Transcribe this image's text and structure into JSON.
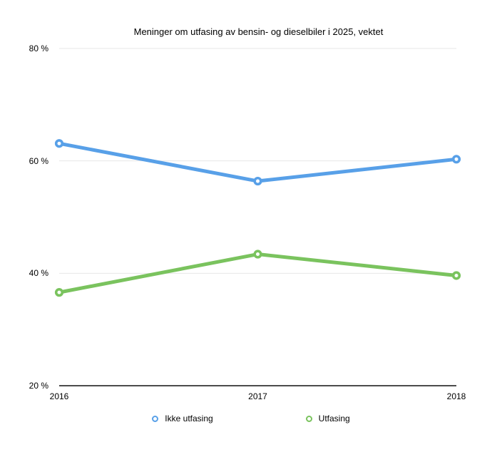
{
  "chart_data": {
    "type": "line",
    "title": "Meninger om utfasing av bensin- og dieselbiler i 2025, vektet",
    "categories": [
      "2016",
      "2017",
      "2018"
    ],
    "series": [
      {
        "name": "Ikke utfasing",
        "color": "#58A0E8",
        "values": [
          63.1,
          56.4,
          60.3
        ]
      },
      {
        "name": "Utfasing",
        "color": "#7AC35E",
        "values": [
          36.6,
          43.4,
          39.6
        ]
      }
    ],
    "ylim": [
      20,
      80
    ],
    "yticks": [
      80,
      60,
      40,
      20
    ],
    "ytick_suffix": " %",
    "xlabel": "",
    "ylabel": "",
    "grid": true,
    "legend_position": "bottom"
  },
  "colors": {
    "grid": "#E7E7E7",
    "axis": "#111111",
    "text": "#000000",
    "background": "#FFFFFF"
  }
}
